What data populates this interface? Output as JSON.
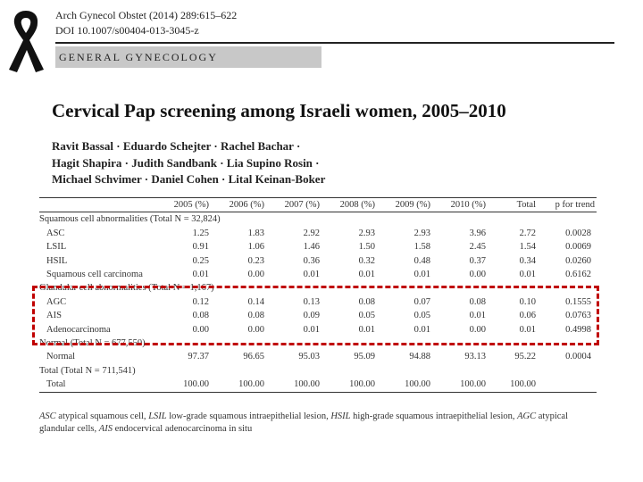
{
  "journal": {
    "citation": "Arch Gynecol Obstet (2014) 289:615–622",
    "doi": "DOI 10.1007/s00404-013-3045-z"
  },
  "section": "GENERAL GYNECOLOGY",
  "article_title": "Cervical Pap screening among Israeli women, 2005–2010",
  "authors": [
    "Ravit Bassal · Eduardo Schejter · Rachel Bachar ·",
    "Hagit Shapira · Judith Sandbank · Lia Supino Rosin ·",
    "Michael Schvimer · Daniel Cohen · Lital Keinan-Boker"
  ],
  "table": {
    "headers": [
      "",
      "2005 (%)",
      "2006 (%)",
      "2007 (%)",
      "2008 (%)",
      "2009 (%)",
      "2010 (%)",
      "Total",
      "p for trend"
    ],
    "rows": [
      {
        "type": "group",
        "label": "Squamous cell abnormalities (Total N = 32,824)"
      },
      {
        "type": "data",
        "label": "ASC",
        "values": [
          "1.25",
          "1.83",
          "2.92",
          "2.93",
          "2.93",
          "3.96",
          "2.72",
          "0.0028"
        ]
      },
      {
        "type": "data",
        "label": "LSIL",
        "values": [
          "0.91",
          "1.06",
          "1.46",
          "1.50",
          "1.58",
          "2.45",
          "1.54",
          "0.0069"
        ]
      },
      {
        "type": "data",
        "label": "HSIL",
        "values": [
          "0.25",
          "0.23",
          "0.36",
          "0.32",
          "0.48",
          "0.37",
          "0.34",
          "0.0260"
        ]
      },
      {
        "type": "data",
        "label": "Squamous cell carcinoma",
        "values": [
          "0.01",
          "0.00",
          "0.01",
          "0.01",
          "0.01",
          "0.00",
          "0.01",
          "0.6162"
        ]
      },
      {
        "type": "group",
        "label": "Glandular cell abnormalities (Total N = 1,167)"
      },
      {
        "type": "data",
        "label": "AGC",
        "values": [
          "0.12",
          "0.14",
          "0.13",
          "0.08",
          "0.07",
          "0.08",
          "0.10",
          "0.1555"
        ]
      },
      {
        "type": "data",
        "label": "AIS",
        "values": [
          "0.08",
          "0.08",
          "0.09",
          "0.05",
          "0.05",
          "0.01",
          "0.06",
          "0.0763"
        ]
      },
      {
        "type": "data",
        "label": "Adenocarcinoma",
        "values": [
          "0.00",
          "0.00",
          "0.01",
          "0.01",
          "0.01",
          "0.00",
          "0.01",
          "0.4998"
        ]
      },
      {
        "type": "group",
        "label": "Normal (Total N = 677,550)"
      },
      {
        "type": "data",
        "label": "Normal",
        "values": [
          "97.37",
          "96.65",
          "95.03",
          "95.09",
          "94.88",
          "93.13",
          "95.22",
          "0.0004"
        ]
      },
      {
        "type": "group",
        "label": "Total (Total N = 711,541)"
      },
      {
        "type": "data",
        "label": "Total",
        "values": [
          "100.00",
          "100.00",
          "100.00",
          "100.00",
          "100.00",
          "100.00",
          "100.00",
          ""
        ]
      }
    ]
  },
  "footnote_parts": [
    {
      "t": "ASC",
      "i": true
    },
    {
      "t": " atypical squamous cell, ",
      "i": false
    },
    {
      "t": "LSIL",
      "i": true
    },
    {
      "t": " low-grade squamous intraepithelial lesion, ",
      "i": false
    },
    {
      "t": "HSIL",
      "i": true
    },
    {
      "t": " high-grade squamous intraepithelial lesion, ",
      "i": false
    },
    {
      "t": "AGC",
      "i": true
    },
    {
      "t": " atypical glandular cells, ",
      "i": false
    },
    {
      "t": "AIS",
      "i": true
    },
    {
      "t": " endocervical adenocarcinoma in situ",
      "i": false
    }
  ],
  "highlight_color": "#c00000",
  "ribbon_color": "#111111",
  "ribbon_icon": "awareness-ribbon-icon"
}
